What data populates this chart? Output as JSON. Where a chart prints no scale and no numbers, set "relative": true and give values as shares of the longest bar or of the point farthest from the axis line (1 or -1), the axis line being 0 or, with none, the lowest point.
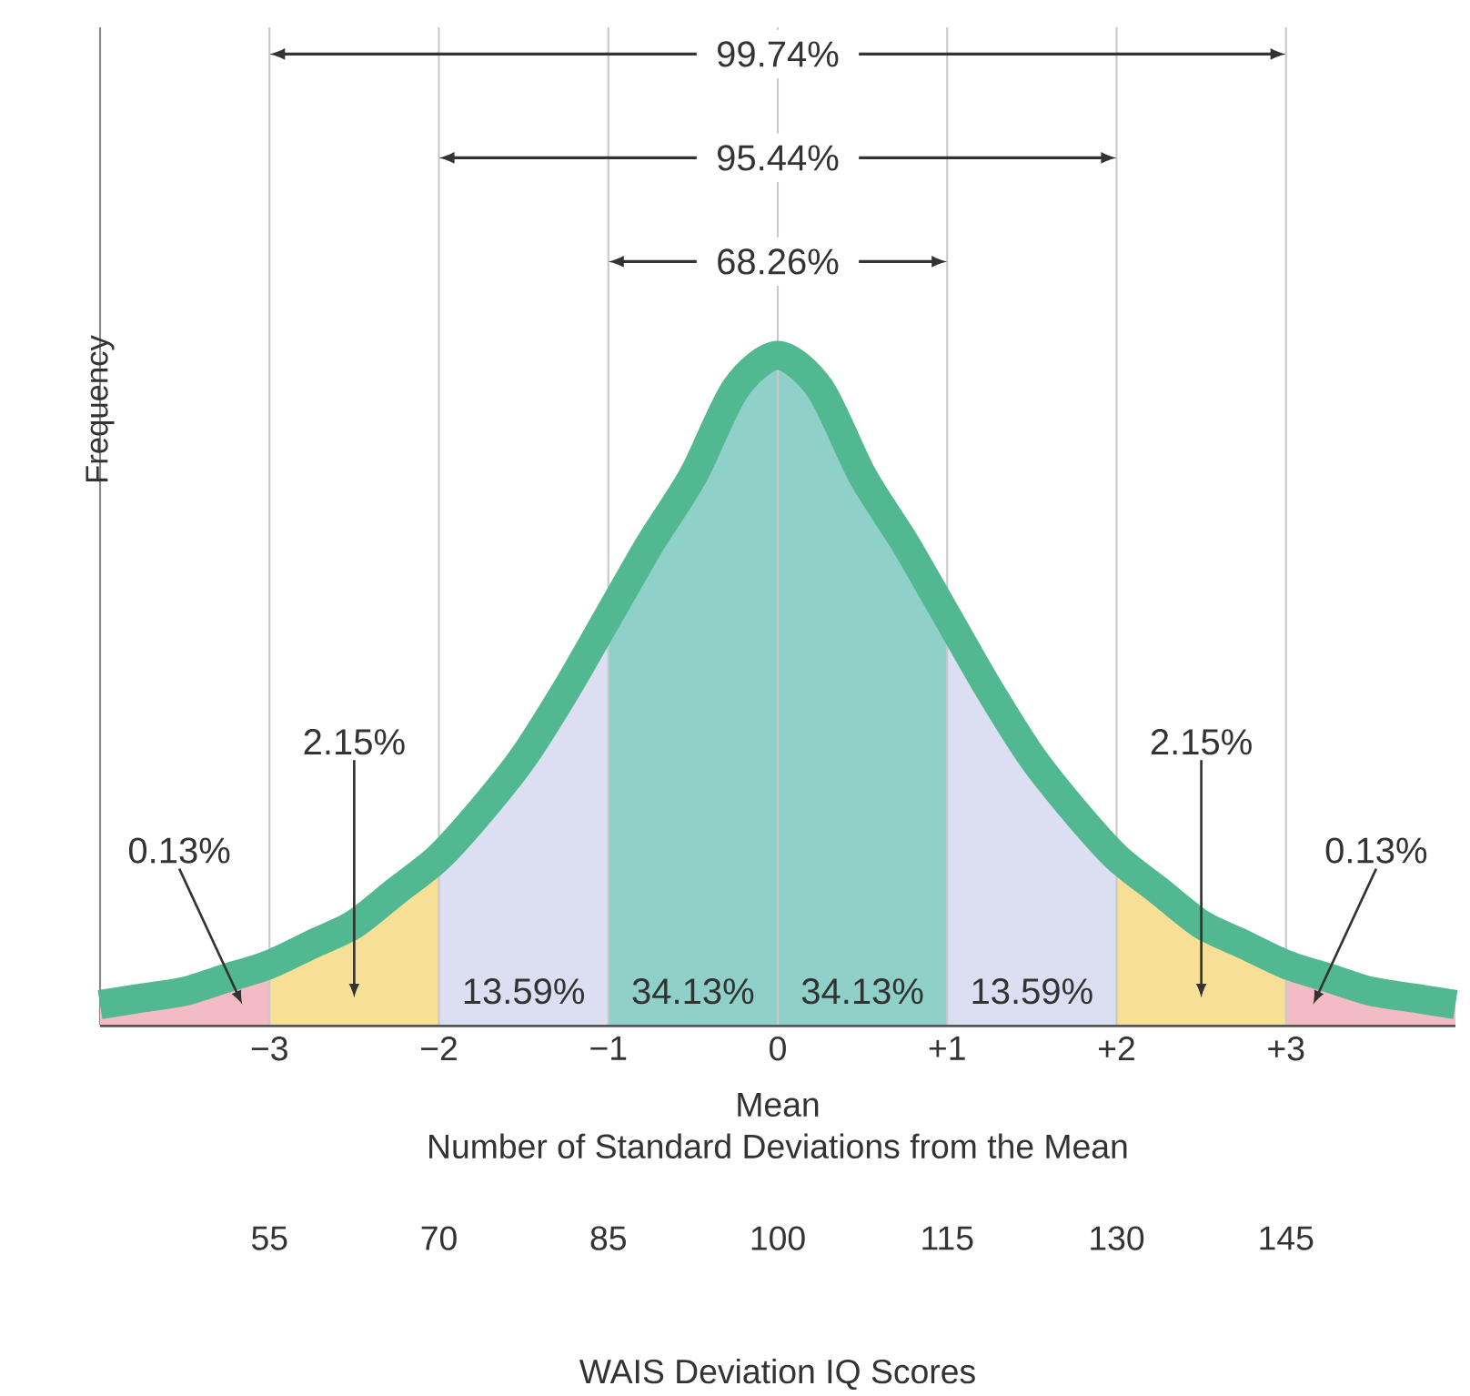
{
  "chart_data": {
    "type": "area",
    "relative": true,
    "tick_labels": "x",
    "xlabel": "Number of Standard Deviations from the Mean",
    "ylabel": "Frequency",
    "x2label": "WAIS Deviation IQ Scores",
    "xlim": [
      -4,
      4
    ],
    "xticks": [
      {
        "value": -3,
        "label": "−3"
      },
      {
        "value": -2,
        "label": "−2"
      },
      {
        "value": -1,
        "label": "−1"
      },
      0,
      {
        "value": 1,
        "label": "+1"
      },
      {
        "value": 2,
        "label": "+2"
      },
      {
        "value": 3,
        "label": "+3"
      }
    ],
    "x2lim": [
      40,
      160
    ],
    "x2ticks": [
      55,
      70,
      85,
      100,
      115,
      130,
      145
    ],
    "series": [
      {
        "color": "#f3bcc4",
        "x": [
          -4,
          -3.75,
          -3.5,
          -3.25,
          -3
        ],
        "values": [
          0.03,
          0.04,
          0.05,
          0.07,
          0.09
        ]
      },
      {
        "color": "#f7df96",
        "x": [
          -3,
          -2.75,
          -2.5,
          -2.25,
          -2
        ],
        "values": [
          0.09,
          0.12,
          0.15,
          0.2,
          0.25
        ]
      },
      {
        "color": "#dcdff2",
        "x": [
          -2,
          -1.75,
          -1.5,
          -1.25,
          -1
        ],
        "values": [
          0.25,
          0.32,
          0.4,
          0.5,
          0.61
        ]
      },
      {
        "color": "#8fd0c8",
        "x": [
          -1,
          -0.75,
          -0.5,
          -0.25,
          0,
          0.25,
          0.5,
          0.75,
          1
        ],
        "values": [
          0.61,
          0.72,
          0.82,
          0.95,
          1,
          0.95,
          0.82,
          0.72,
          0.61
        ]
      },
      {
        "color": "#dcdff2",
        "x": [
          1,
          1.25,
          1.5,
          1.75,
          2
        ],
        "values": [
          0.61,
          0.5,
          0.4,
          0.32,
          0.25
        ]
      },
      {
        "color": "#f7df96",
        "x": [
          2,
          2.25,
          2.5,
          2.75,
          3
        ],
        "values": [
          0.25,
          0.2,
          0.15,
          0.12,
          0.09
        ]
      },
      {
        "color": "#f3bcc4",
        "x": [
          3,
          3.25,
          3.5,
          3.75,
          4
        ],
        "values": [
          0.09,
          0.07,
          0.05,
          0.04,
          0.03
        ]
      },
      {
        "type": "line",
        "color": "#52b891",
        "x": [
          -4,
          -3.75,
          -3.5,
          -3.25,
          -3,
          -2.75,
          -2.5,
          -2.25,
          -2,
          -1.75,
          -1.5,
          -1.25,
          -1,
          -0.75,
          -0.5,
          -0.25,
          0,
          0.25,
          0.5,
          0.75,
          1,
          1.25,
          1.5,
          1.75,
          2,
          2.25,
          2.5,
          2.75,
          3,
          3.25,
          3.5,
          3.75,
          4
        ],
        "values": [
          0.03,
          0.04,
          0.05,
          0.07,
          0.09,
          0.12,
          0.15,
          0.2,
          0.25,
          0.32,
          0.4,
          0.5,
          0.61,
          0.72,
          0.82,
          0.95,
          1,
          0.95,
          0.82,
          0.72,
          0.61,
          0.5,
          0.4,
          0.32,
          0.25,
          0.2,
          0.15,
          0.12,
          0.09,
          0.07,
          0.05,
          0.04,
          0.03
        ]
      }
    ],
    "ref_lines": [
      {
        "axis": "x",
        "value": -3,
        "color": "#c9c9c9"
      },
      {
        "axis": "x",
        "value": -2,
        "color": "#c9c9c9"
      },
      {
        "axis": "x",
        "value": -1,
        "color": "#c9c9c9"
      },
      {
        "axis": "x",
        "value": 0,
        "color": "#c9c9c9"
      },
      {
        "axis": "x",
        "value": 1,
        "color": "#c9c9c9"
      },
      {
        "axis": "x",
        "value": 2,
        "color": "#c9c9c9"
      },
      {
        "axis": "x",
        "value": 3,
        "color": "#c9c9c9"
      }
    ],
    "annotations": [
      "99.74%",
      "95.44%",
      "68.26%",
      "Mean",
      "13.59%",
      "34.13%",
      "34.13%",
      "13.59%",
      "2.15%",
      "0.13%",
      "2.15%",
      "0.13%"
    ]
  }
}
